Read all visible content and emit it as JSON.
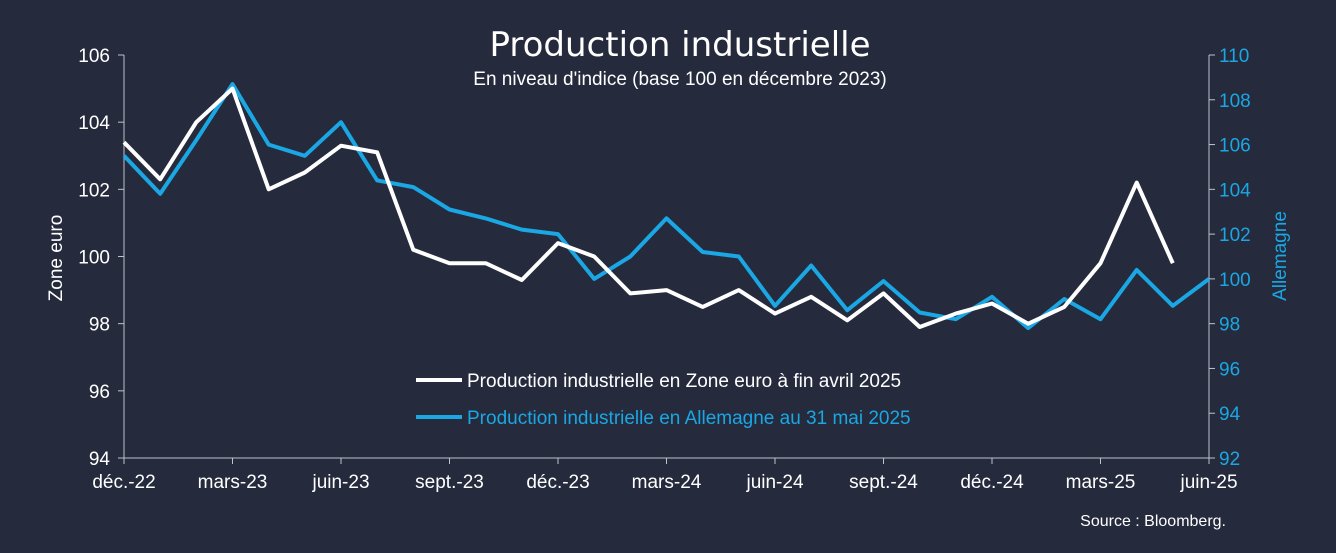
{
  "chart_data": {
    "type": "line",
    "title": "Production industrielle",
    "subtitle": "En niveau d'indice (base 100 en décembre 2023)",
    "ylabel_left": "Zone euro",
    "ylabel_right": "Allemagne",
    "ylim_left": [
      94,
      106
    ],
    "ylim_right": [
      92,
      110
    ],
    "yticks_left": [
      "94",
      "96",
      "98",
      "100",
      "102",
      "104",
      "106"
    ],
    "yticks_right": [
      "92",
      "94",
      "96",
      "98",
      "100",
      "102",
      "104",
      "106",
      "108",
      "110"
    ],
    "x_range": [
      "2022-12",
      "2025-06"
    ],
    "xticks": [
      {
        "label": "déc.-22",
        "date": "2022-12"
      },
      {
        "label": "mars-23",
        "date": "2023-03"
      },
      {
        "label": "juin-23",
        "date": "2023-06"
      },
      {
        "label": "sept.-23",
        "date": "2023-09"
      },
      {
        "label": "déc.-23",
        "date": "2023-12"
      },
      {
        "label": "mars-24",
        "date": "2024-03"
      },
      {
        "label": "juin-24",
        "date": "2024-06"
      },
      {
        "label": "sept.-24",
        "date": "2024-09"
      },
      {
        "label": "déc.-24",
        "date": "2024-12"
      },
      {
        "label": "mars-25",
        "date": "2025-03"
      },
      {
        "label": "juin-25",
        "date": "2025-06"
      }
    ],
    "series": [
      {
        "name": "Production industrielle en Zone euro à fin avril 2025",
        "axis": "left",
        "color": "#ffffff",
        "start": "2022-12",
        "values": [
          103.4,
          102.3,
          104.0,
          105.0,
          102.0,
          102.5,
          103.3,
          103.1,
          100.2,
          99.8,
          99.8,
          99.3,
          100.4,
          100.0,
          98.9,
          99.0,
          98.5,
          99.0,
          98.3,
          98.8,
          98.1,
          98.9,
          97.9,
          98.3,
          98.6,
          98.0,
          98.5,
          99.8,
          102.2,
          99.8
        ]
      },
      {
        "name": "Production industrielle en Allemagne au 31 mai 2025",
        "axis": "right",
        "color": "#1aa7e3",
        "start": "2022-12",
        "values": [
          105.5,
          103.8,
          106.2,
          108.7,
          106.0,
          105.5,
          107.0,
          104.4,
          104.1,
          103.1,
          102.7,
          102.2,
          102.0,
          100.0,
          101.0,
          102.7,
          101.2,
          101.0,
          98.8,
          100.6,
          98.6,
          99.9,
          98.5,
          98.2,
          99.2,
          97.8,
          99.1,
          98.2,
          100.4,
          98.8,
          100.0
        ]
      }
    ],
    "legend_position": "bottom-center",
    "grid": false
  },
  "source": "Source : Bloomberg.",
  "colors": {
    "background": "#252a3d",
    "axis": "#bfc3cc",
    "zone_euro": "#ffffff",
    "allemagne": "#1aa7e3"
  }
}
